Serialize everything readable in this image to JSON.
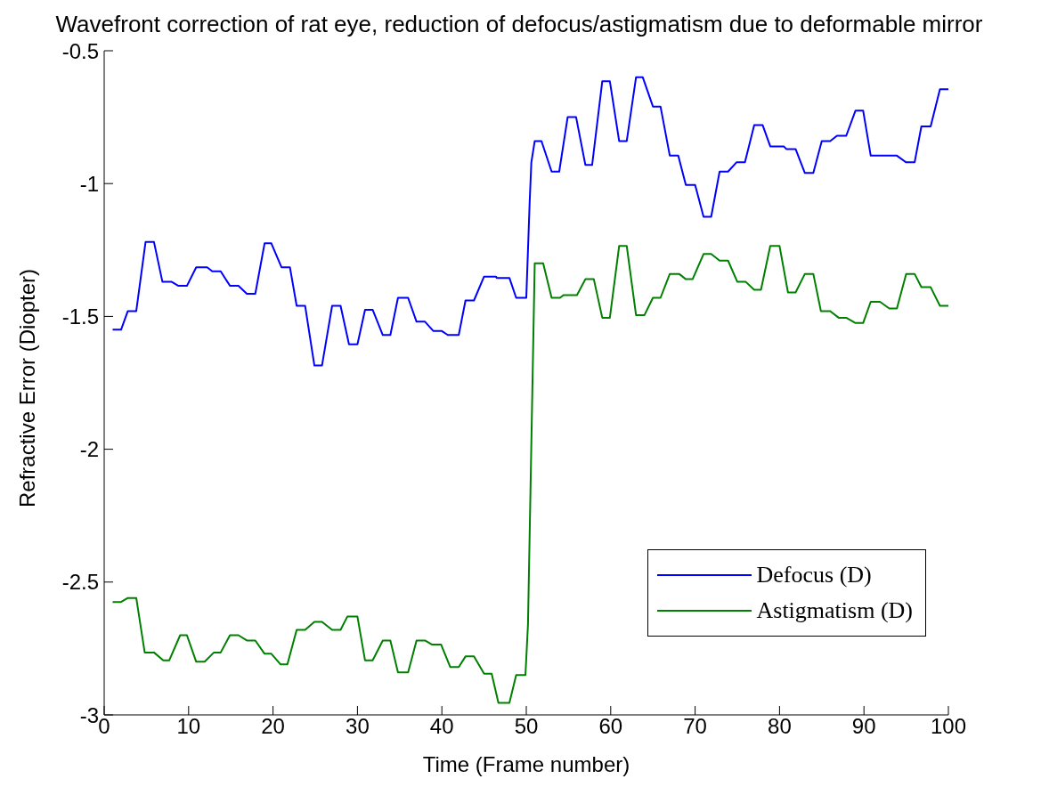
{
  "chart_data": {
    "type": "line",
    "title": "Wavefront correction of rat eye, reduction of defocus/astigmatism due to deformable mirror",
    "xlabel": "Time (Frame number)",
    "ylabel": "Refractive Error (Diopter)",
    "xlim": [
      0,
      100
    ],
    "xticks": [
      0,
      10,
      20,
      30,
      40,
      50,
      60,
      70,
      80,
      90,
      100
    ],
    "ylim": [
      -3,
      -0.5
    ],
    "yticks": [
      -3,
      -2.5,
      -2,
      -1.5,
      -1,
      -0.5
    ],
    "grid": false,
    "legend": "bottom right",
    "marker": "none",
    "line_style": "solid",
    "series": [
      {
        "name": "Defocus (D)",
        "color": "#0000ff",
        "x": [
          1,
          2,
          2.8,
          3.8,
          4.9,
          5.9,
          6.9,
          8,
          8.8,
          9.8,
          10.9,
          12.2,
          12.8,
          13.8,
          14.9,
          15.9,
          16.9,
          17.9,
          19,
          19.8,
          21,
          22,
          22.8,
          23.8,
          24.9,
          25.8,
          27,
          28,
          29,
          30,
          30.9,
          31.8,
          33,
          33.9,
          34.8,
          36,
          37,
          38,
          39,
          40,
          40.7,
          42,
          42.8,
          43.8,
          45,
          46.4,
          46.5,
          48,
          48.8,
          50,
          50.4,
          50.6,
          51,
          51.8,
          53,
          53.9,
          54.9,
          55.9,
          57,
          57.8,
          59,
          59.9,
          61,
          61.9,
          63,
          63.8,
          65,
          65.9,
          67,
          68,
          68.9,
          70,
          71,
          71.9,
          72.9,
          73.9,
          74.9,
          75.9,
          77,
          78,
          78.9,
          80.5,
          80.8,
          81.9,
          83,
          84,
          85,
          86,
          86.8,
          87.9,
          89,
          89.9,
          90.8,
          93.9,
          95,
          96,
          96.8,
          97.9,
          99,
          100
        ],
        "values": [
          -1.55,
          -1.55,
          -1.48,
          -1.48,
          -1.22,
          -1.22,
          -1.37,
          -1.37,
          -1.385,
          -1.385,
          -1.315,
          -1.315,
          -1.33,
          -1.33,
          -1.385,
          -1.385,
          -1.415,
          -1.415,
          -1.225,
          -1.225,
          -1.315,
          -1.315,
          -1.46,
          -1.46,
          -1.685,
          -1.685,
          -1.46,
          -1.46,
          -1.605,
          -1.605,
          -1.475,
          -1.475,
          -1.57,
          -1.57,
          -1.43,
          -1.43,
          -1.52,
          -1.52,
          -1.555,
          -1.555,
          -1.57,
          -1.57,
          -1.44,
          -1.44,
          -1.35,
          -1.35,
          -1.355,
          -1.355,
          -1.43,
          -1.43,
          -1.07,
          -0.92,
          -0.84,
          -0.84,
          -0.955,
          -0.955,
          -0.75,
          -0.75,
          -0.93,
          -0.93,
          -0.615,
          -0.615,
          -0.84,
          -0.84,
          -0.6,
          -0.6,
          -0.71,
          -0.71,
          -0.895,
          -0.895,
          -1.005,
          -1.005,
          -1.125,
          -1.125,
          -0.955,
          -0.955,
          -0.92,
          -0.92,
          -0.78,
          -0.78,
          -0.86,
          -0.86,
          -0.87,
          -0.87,
          -0.96,
          -0.96,
          -0.84,
          -0.84,
          -0.82,
          -0.82,
          -0.725,
          -0.725,
          -0.895,
          -0.895,
          -0.92,
          -0.92,
          -0.785,
          -0.785,
          -0.645,
          -0.645
        ]
      },
      {
        "name": "Astigmatism (D)",
        "color": "#008000",
        "x": [
          1,
          2,
          2.8,
          3.8,
          4.8,
          5.9,
          7,
          7.7,
          9,
          9.8,
          10.9,
          11.9,
          13,
          13.8,
          14.9,
          15.9,
          16.9,
          17.9,
          19,
          19.8,
          20.9,
          21.7,
          22.8,
          23.8,
          24.9,
          25.8,
          27,
          28,
          28.8,
          30,
          30.9,
          31.8,
          33,
          33.9,
          34.8,
          36,
          37,
          38,
          38.8,
          39.9,
          41,
          42,
          42.8,
          43.8,
          45,
          45.9,
          46.7,
          48,
          48.8,
          49.9,
          50.2,
          51,
          52,
          53,
          54,
          54.4,
          56,
          57,
          58,
          59,
          59.9,
          61,
          61.9,
          63,
          64,
          65,
          65.9,
          67,
          68.1,
          68.9,
          69.7,
          71,
          71.9,
          72.9,
          73.9,
          75,
          76,
          77,
          77.8,
          78.9,
          80,
          81,
          81.9,
          83,
          84,
          84.9,
          86,
          87,
          87.9,
          89,
          89.9,
          90.8,
          91.9,
          93,
          93.9,
          95,
          96,
          96.8,
          97.9,
          99,
          100
        ],
        "values": [
          -2.575,
          -2.575,
          -2.56,
          -2.56,
          -2.765,
          -2.765,
          -2.795,
          -2.795,
          -2.7,
          -2.7,
          -2.8,
          -2.8,
          -2.765,
          -2.765,
          -2.7,
          -2.7,
          -2.72,
          -2.72,
          -2.77,
          -2.77,
          -2.81,
          -2.81,
          -2.68,
          -2.68,
          -2.65,
          -2.65,
          -2.68,
          -2.68,
          -2.63,
          -2.63,
          -2.795,
          -2.795,
          -2.72,
          -2.72,
          -2.84,
          -2.84,
          -2.72,
          -2.72,
          -2.735,
          -2.735,
          -2.82,
          -2.82,
          -2.78,
          -2.78,
          -2.845,
          -2.845,
          -2.955,
          -2.955,
          -2.85,
          -2.85,
          -2.66,
          -1.3,
          -1.3,
          -1.43,
          -1.43,
          -1.42,
          -1.42,
          -1.36,
          -1.36,
          -1.505,
          -1.505,
          -1.235,
          -1.235,
          -1.495,
          -1.495,
          -1.43,
          -1.43,
          -1.34,
          -1.34,
          -1.36,
          -1.36,
          -1.265,
          -1.265,
          -1.29,
          -1.29,
          -1.37,
          -1.37,
          -1.4,
          -1.4,
          -1.235,
          -1.235,
          -1.41,
          -1.41,
          -1.34,
          -1.34,
          -1.48,
          -1.48,
          -1.505,
          -1.505,
          -1.525,
          -1.525,
          -1.445,
          -1.445,
          -1.47,
          -1.47,
          -1.34,
          -1.34,
          -1.39,
          -1.39,
          -1.46,
          -1.46
        ]
      }
    ]
  }
}
